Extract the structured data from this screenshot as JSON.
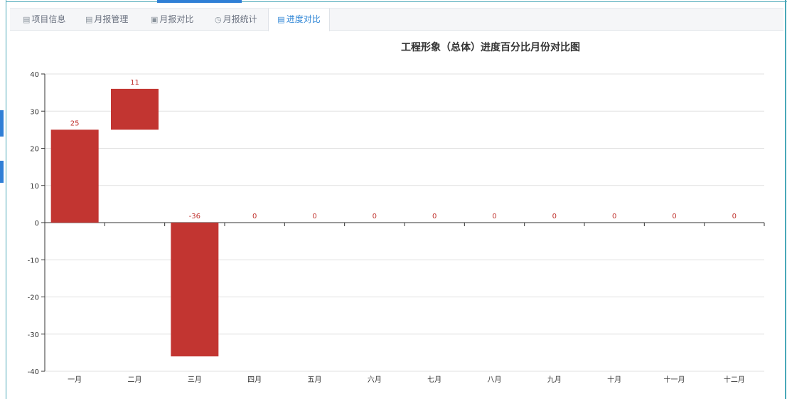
{
  "tabs": [
    {
      "label": "项目信息",
      "icon": "document-icon",
      "glyph": "▤",
      "active": false
    },
    {
      "label": "月报管理",
      "icon": "calendar-icon",
      "glyph": "▤",
      "active": false
    },
    {
      "label": "月报对比",
      "icon": "compare-icon",
      "glyph": "▣",
      "active": false
    },
    {
      "label": "月报统计",
      "icon": "clock-icon",
      "glyph": "◷",
      "active": false
    },
    {
      "label": "进度对比",
      "icon": "progress-icon",
      "glyph": "▤",
      "active": true
    }
  ],
  "colors": {
    "accent": "#2f86d6",
    "bar": "#c23531",
    "label": "#c23531",
    "grid": "#e0e0e0",
    "axis": "#333333"
  },
  "chart_data": {
    "type": "bar",
    "title": "工程形象（总体）进度百分比月份对比图",
    "categories": [
      "一月",
      "二月",
      "三月",
      "四月",
      "五月",
      "六月",
      "七月",
      "八月",
      "九月",
      "十月",
      "十一月",
      "十二月"
    ],
    "values": [
      25,
      11,
      -36,
      0,
      0,
      0,
      0,
      0,
      0,
      0,
      0,
      0
    ],
    "bar_bases": [
      0,
      25,
      0,
      0,
      0,
      0,
      0,
      0,
      0,
      0,
      0,
      0
    ],
    "data_labels": [
      "25",
      "11",
      "-36",
      "0",
      "0",
      "0",
      "0",
      "0",
      "0",
      "0",
      "0",
      "0"
    ],
    "yticks": [
      40,
      30,
      20,
      10,
      0,
      -10,
      -20,
      -30,
      -40
    ],
    "ylim": [
      -40,
      40
    ],
    "grid": true,
    "legend": "none"
  }
}
